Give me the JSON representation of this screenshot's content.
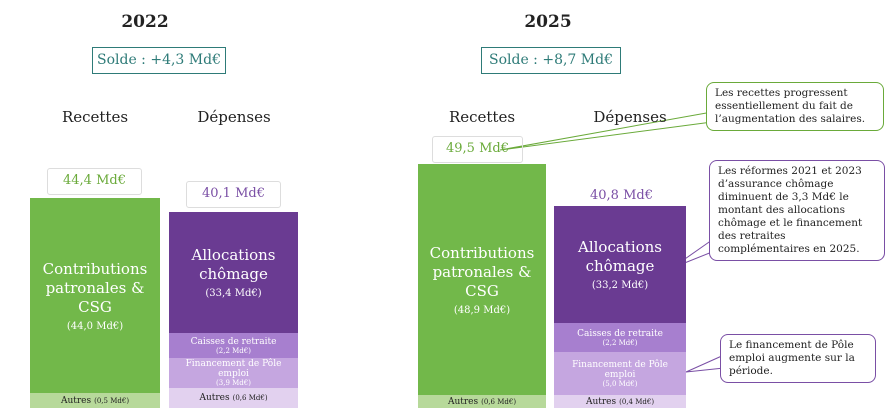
{
  "panels": [
    {
      "year": "2022",
      "balance": "Solde : +4,3 Md€",
      "columns": [
        {
          "heading": "Recettes",
          "total": "44,4 Md€",
          "segments": [
            {
              "name": "Contributions patronales & CSG",
              "amount": "(44,0 Md€)"
            },
            {
              "name": "Autres",
              "amount": "(0,5 Md€)"
            }
          ]
        },
        {
          "heading": "Dépenses",
          "total": "40,1 Md€",
          "segments": [
            {
              "name": "Allocations chômage",
              "amount": "(33,4 Md€)"
            },
            {
              "name": "Caisses de retraite",
              "amount": "(2,2 Md€)"
            },
            {
              "name": "Financement de Pôle emploi",
              "amount": "(3,9 Md€)"
            },
            {
              "name": "Autres",
              "amount": "(0,6 Md€)"
            }
          ]
        }
      ]
    },
    {
      "year": "2025",
      "balance": "Solde : +8,7 Md€",
      "columns": [
        {
          "heading": "Recettes",
          "total": "49,5 Md€",
          "segments": [
            {
              "name": "Contributions patronales & CSG",
              "amount": "(48,9 Md€)"
            },
            {
              "name": "Autres",
              "amount": "(0,6 Md€)"
            }
          ]
        },
        {
          "heading": "Dépenses",
          "total": "40,8 Md€",
          "segments": [
            {
              "name": "Allocations chômage",
              "amount": "(33,2 Md€)"
            },
            {
              "name": "Caisses de retraite",
              "amount": "(2,2 Md€)"
            },
            {
              "name": "Financement de Pôle emploi",
              "amount": "(5,0 Md€)"
            },
            {
              "name": "Autres",
              "amount": "(0,4 Md€)"
            }
          ]
        }
      ]
    }
  ],
  "callouts": [
    "Les recettes progressent essentiellement du fait de l’augmentation des salaires.",
    "Les réformes 2021 et 2023 d’assurance chômage diminuent de 3,3 Md€ le montant des allocations chômage et le financement des retraites complémentaires en 2025.",
    "Le financement de Pôle emploi augmente sur la période."
  ]
}
